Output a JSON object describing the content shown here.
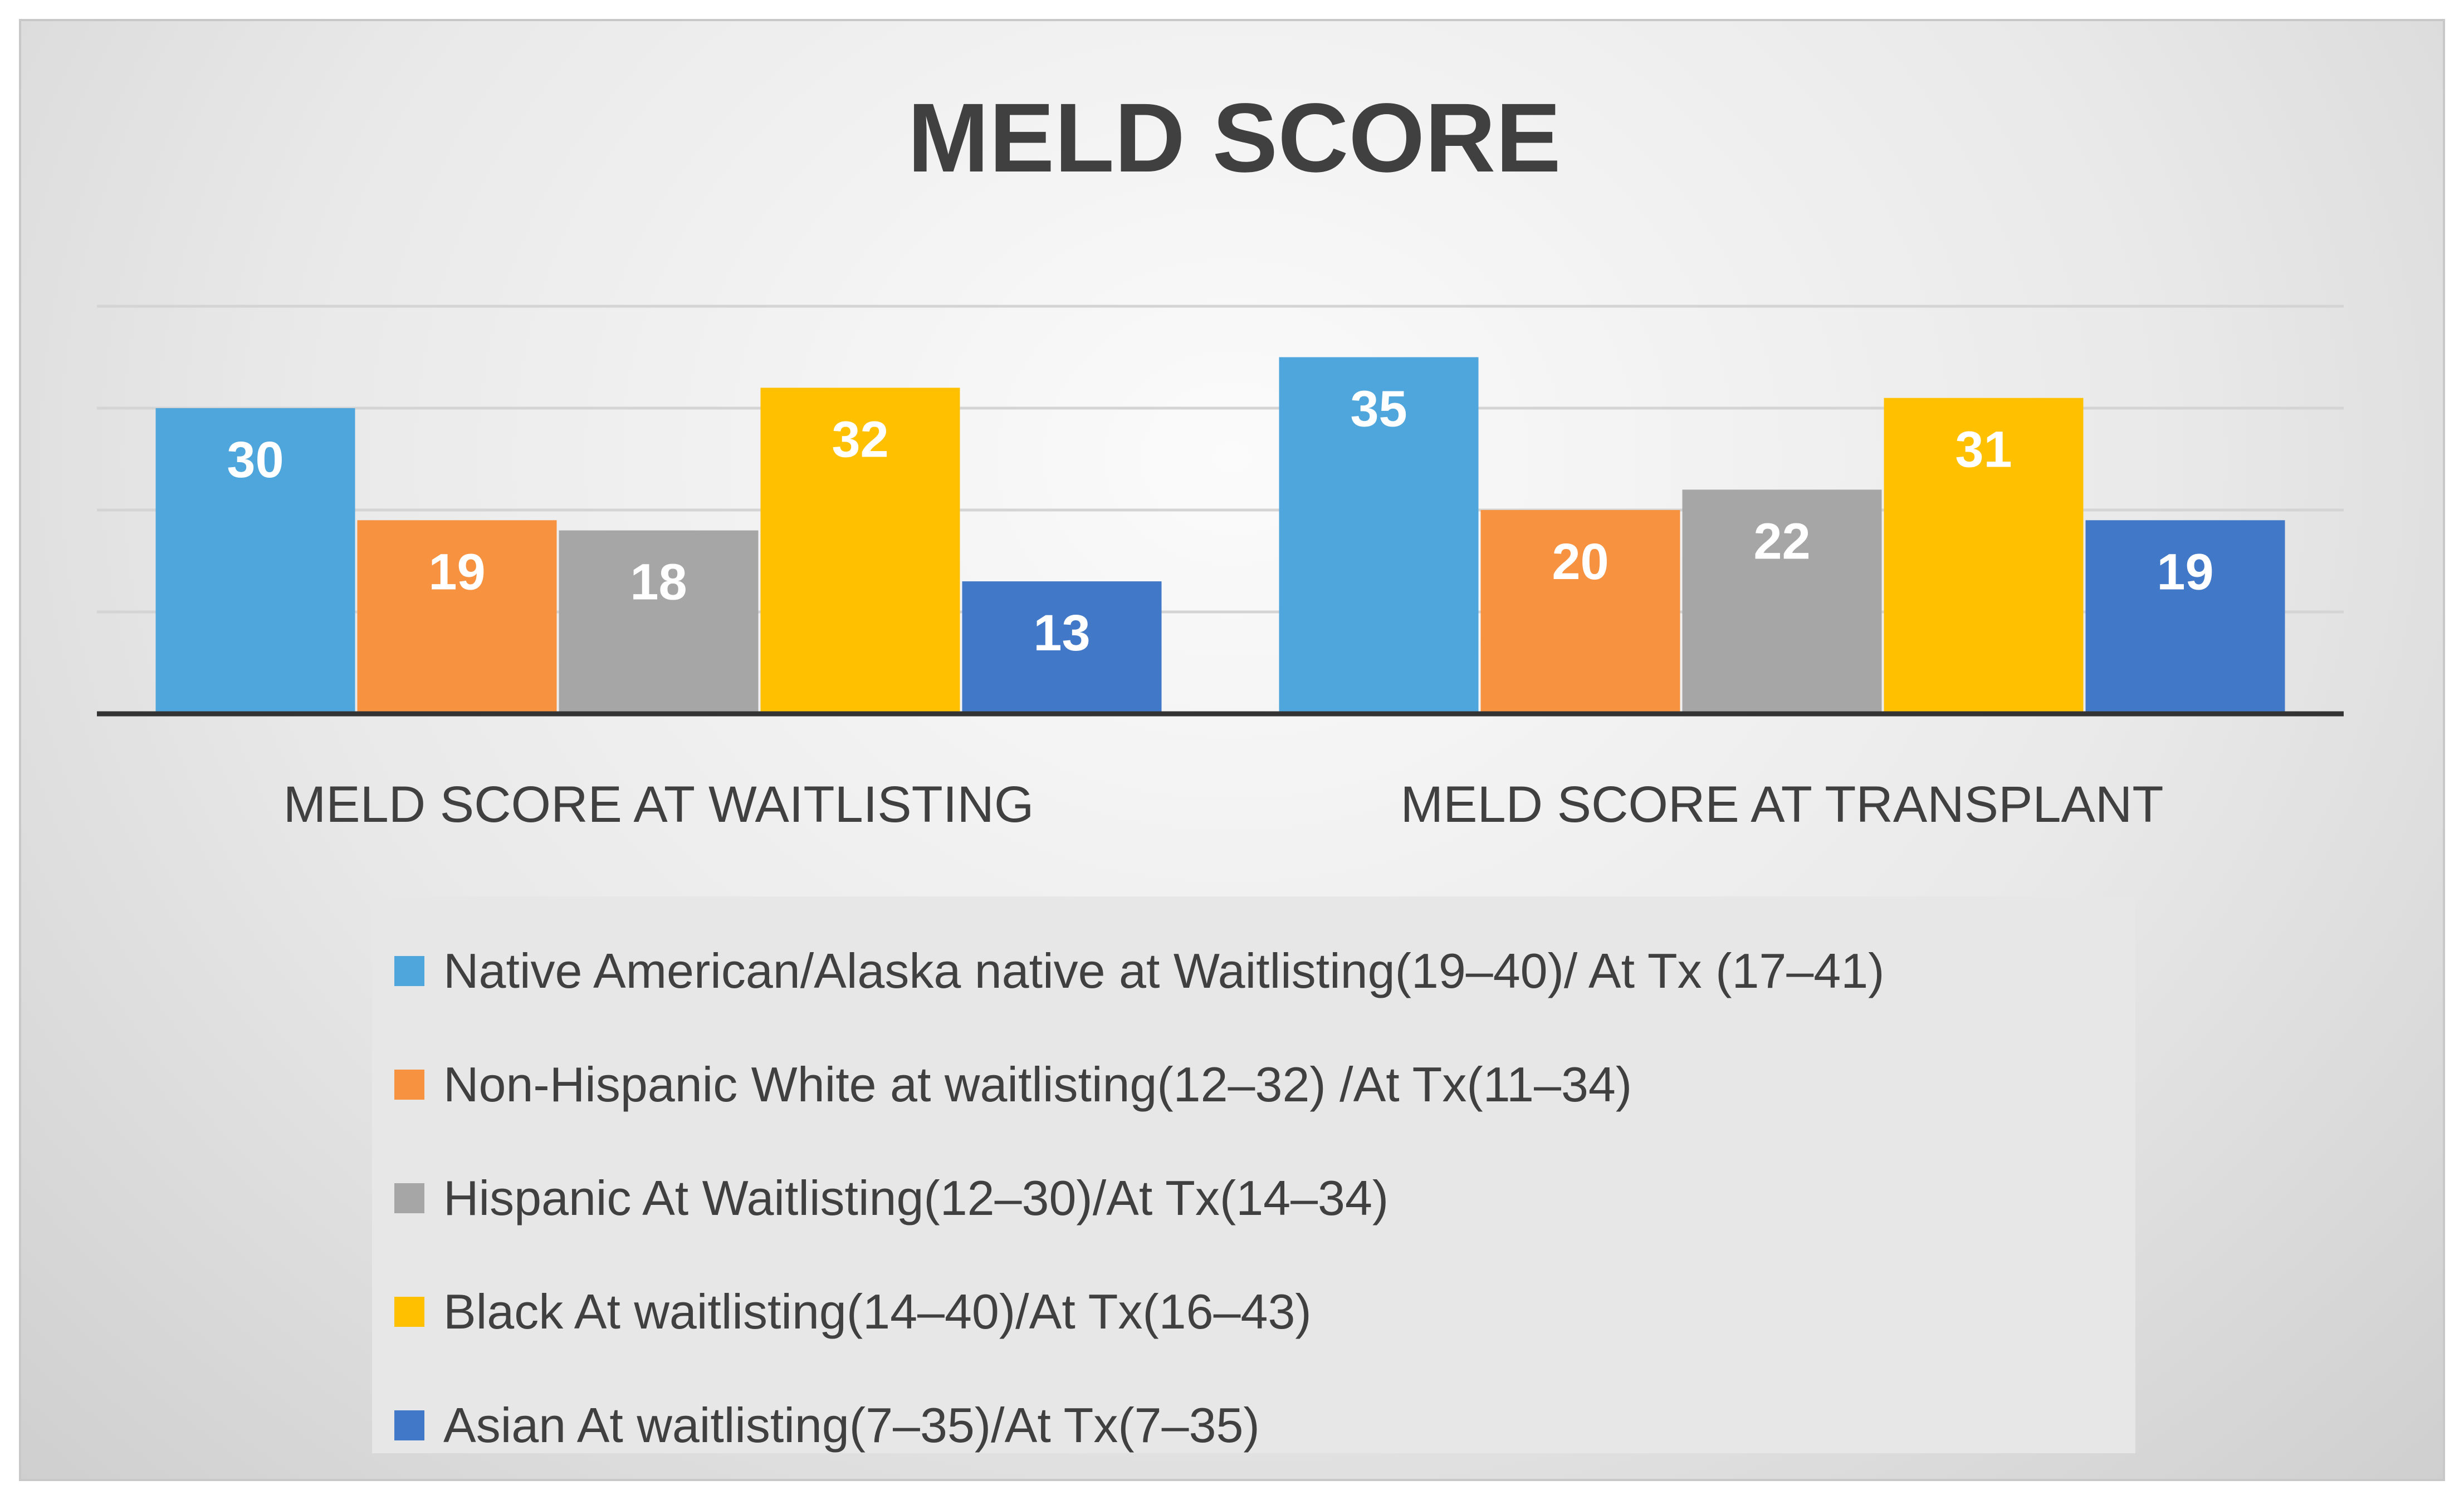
{
  "chart_data": {
    "type": "bar",
    "title": "MELD SCORE",
    "categories": [
      "MELD SCORE AT WAITLISTING",
      "MELD SCORE AT TRANSPLANT"
    ],
    "series": [
      {
        "name": "Native American/Alaska native at Waitlisting(19–40)/ At Tx (17–41)",
        "color": "#4ea6dc",
        "values": [
          30,
          35
        ]
      },
      {
        "name": "Non-Hispanic White at waitlisting(12–32) /At Tx(11–34)",
        "color": "#f79240",
        "values": [
          19,
          20
        ]
      },
      {
        "name": "Hispanic At Waitlisting(12–30)/At Tx(14–34)",
        "color": "#a6a6a6",
        "values": [
          18,
          22
        ]
      },
      {
        "name": "Black At waitlisting(14–40)/At Tx(16–43)",
        "color": "#ffc000",
        "values": [
          32,
          31
        ]
      },
      {
        "name": "Asian At waitlisting(7–35)/At Tx(7–35)",
        "color": "#4178c7",
        "values": [
          13,
          19
        ]
      }
    ],
    "ylim": [
      0,
      40
    ],
    "grid": true,
    "gridline_step": 10,
    "y_tick_labels_shown": false,
    "data_labels": true,
    "legend_position": "bottom"
  }
}
